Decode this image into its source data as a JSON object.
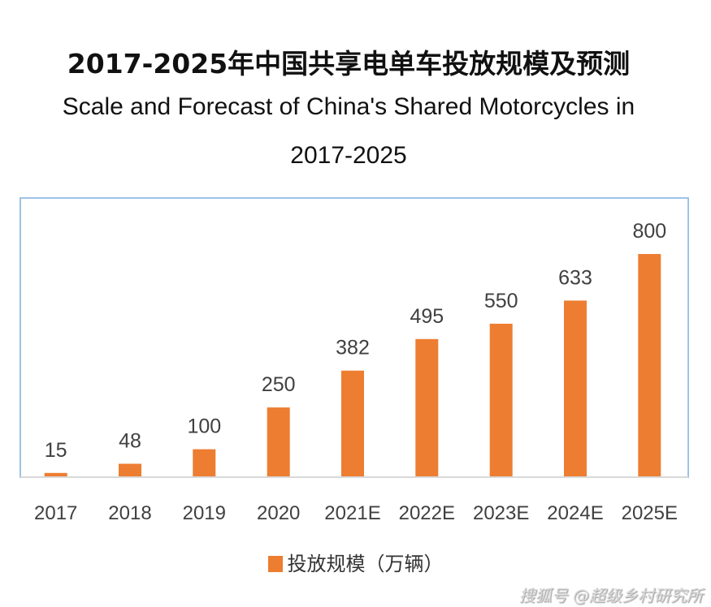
{
  "titles": {
    "cn": "2017-2025年中国共享电单车投放规模及预测",
    "en_line1": "Scale and Forecast of China's Shared Motorcycles in",
    "en_line2": "2017-2025"
  },
  "legend": {
    "label": "投放规模（万辆）",
    "color": "#ED7D31"
  },
  "watermark": "搜狐号 @超级乡村研究所",
  "colors": {
    "bar": "#ED7D31",
    "frame": "#9DC3E6",
    "axis": "#D9D9D9",
    "label": "#404040"
  },
  "chart_data": {
    "type": "bar",
    "title": "2017-2025年中国共享电单车投放规模及预测 / Scale and Forecast of China's Shared Motorcycles in 2017-2025",
    "categories": [
      "2017",
      "2018",
      "2019",
      "2020",
      "2021E",
      "2022E",
      "2023E",
      "2024E",
      "2025E"
    ],
    "series": [
      {
        "name": "投放规模（万辆）",
        "values": [
          15,
          48,
          100,
          250,
          382,
          495,
          550,
          633,
          800
        ]
      }
    ],
    "data_labels": [
      "15",
      "48",
      "100",
      "250",
      "382",
      "495",
      "550",
      "633",
      "800"
    ],
    "xlabel": "",
    "ylabel": "",
    "ylim": [
      0,
      1000
    ],
    "grid": false,
    "legend_position": "bottom",
    "y_axis_visible": false
  }
}
